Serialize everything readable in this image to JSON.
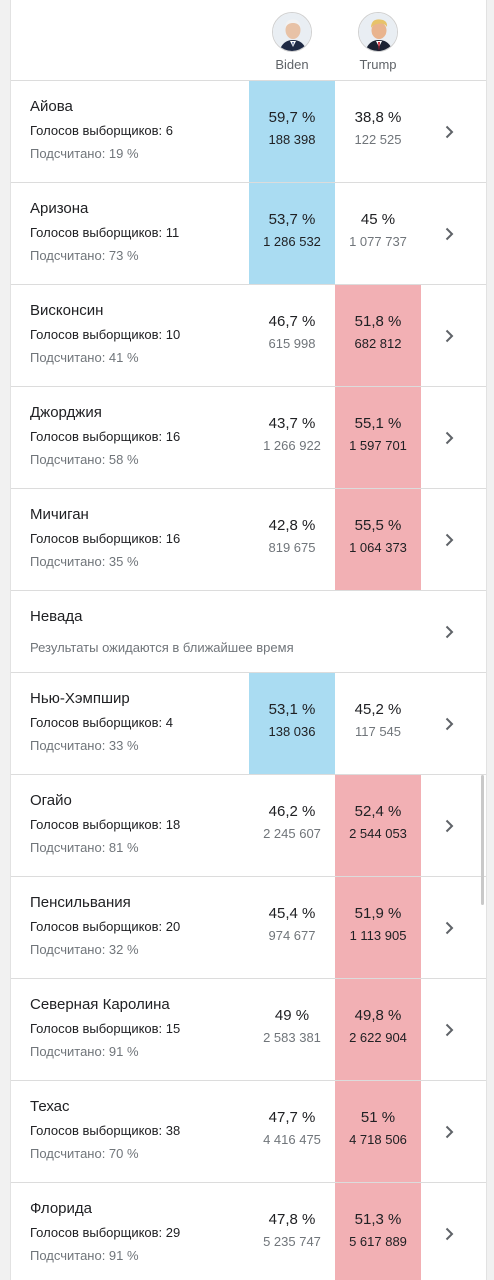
{
  "candidates": {
    "biden": {
      "name": "Biden",
      "avatar_icon": "biden-avatar-icon",
      "color": "#aadcf2"
    },
    "trump": {
      "name": "Trump",
      "avatar_icon": "trump-avatar-icon",
      "color": "#f2b0b4"
    }
  },
  "states": [
    {
      "name": "Айова",
      "electoral": "Голосов выборщиков: 6",
      "counted": "Подсчитано: 19 %",
      "biden_pct": "59,7 %",
      "biden_votes": "188 398",
      "trump_pct": "38,8 %",
      "trump_votes": "122 525",
      "leader": "biden"
    },
    {
      "name": "Аризона",
      "electoral": "Голосов выборщиков: 11",
      "counted": "Подсчитано: 73 %",
      "biden_pct": "53,7 %",
      "biden_votes": "1 286 532",
      "trump_pct": "45 %",
      "trump_votes": "1 077 737",
      "leader": "biden"
    },
    {
      "name": "Висконсин",
      "electoral": "Голосов выборщиков: 10",
      "counted": "Подсчитано: 41 %",
      "biden_pct": "46,7 %",
      "biden_votes": "615 998",
      "trump_pct": "51,8 %",
      "trump_votes": "682 812",
      "leader": "trump"
    },
    {
      "name": "Джорджия",
      "electoral": "Голосов выборщиков: 16",
      "counted": "Подсчитано: 58 %",
      "biden_pct": "43,7 %",
      "biden_votes": "1 266 922",
      "trump_pct": "55,1 %",
      "trump_votes": "1 597 701",
      "leader": "trump"
    },
    {
      "name": "Мичиган",
      "electoral": "Голосов выборщиков: 16",
      "counted": "Подсчитано: 35 %",
      "biden_pct": "42,8 %",
      "biden_votes": "819 675",
      "trump_pct": "55,5 %",
      "trump_votes": "1 064 373",
      "leader": "trump"
    },
    {
      "name": "Невада",
      "pending": "Результаты ожидаются в ближайшее время"
    },
    {
      "name": "Нью-Хэмпшир",
      "electoral": "Голосов выборщиков: 4",
      "counted": "Подсчитано: 33 %",
      "biden_pct": "53,1 %",
      "biden_votes": "138 036",
      "trump_pct": "45,2 %",
      "trump_votes": "117 545",
      "leader": "biden"
    },
    {
      "name": "Огайо",
      "electoral": "Голосов выборщиков: 18",
      "counted": "Подсчитано: 81 %",
      "biden_pct": "46,2 %",
      "biden_votes": "2 245 607",
      "trump_pct": "52,4 %",
      "trump_votes": "2 544 053",
      "leader": "trump"
    },
    {
      "name": "Пенсильвания",
      "electoral": "Голосов выборщиков: 20",
      "counted": "Подсчитано: 32 %",
      "biden_pct": "45,4 %",
      "biden_votes": "974 677",
      "trump_pct": "51,9 %",
      "trump_votes": "1 113 905",
      "leader": "trump"
    },
    {
      "name": "Северная Каролина",
      "electoral": "Голосов выборщиков: 15",
      "counted": "Подсчитано: 91 %",
      "biden_pct": "49 %",
      "biden_votes": "2 583 381",
      "trump_pct": "49,8 %",
      "trump_votes": "2 622 904",
      "leader": "trump"
    },
    {
      "name": "Техас",
      "electoral": "Голосов выборщиков: 38",
      "counted": "Подсчитано: 70 %",
      "biden_pct": "47,7 %",
      "biden_votes": "4 416 475",
      "trump_pct": "51 %",
      "trump_votes": "4 718 506",
      "leader": "trump"
    },
    {
      "name": "Флорида",
      "electoral": "Голосов выборщиков: 29",
      "counted": "Подсчитано: 91 %",
      "biden_pct": "47,8 %",
      "biden_votes": "5 235 747",
      "trump_pct": "51,3 %",
      "trump_votes": "5 617 889",
      "leader": "trump"
    }
  ]
}
